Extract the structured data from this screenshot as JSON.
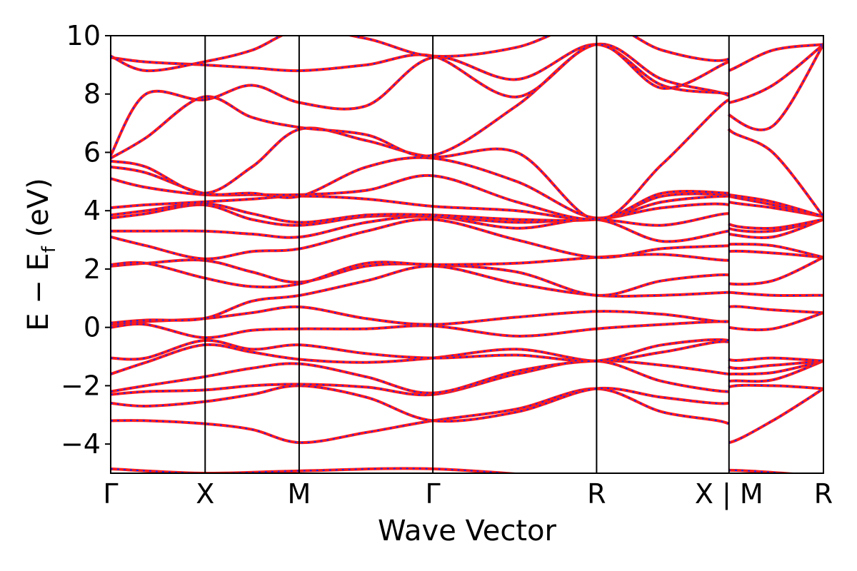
{
  "chart_data": {
    "type": "line",
    "xlabel": "Wave Vector",
    "ylabel_main": "E − E",
    "ylabel_sub": "f",
    "ylabel_unit": " (eV)",
    "ylim": [
      -5,
      10
    ],
    "y_ticks": [
      -4,
      -2,
      0,
      2,
      4,
      6,
      8,
      10
    ],
    "y_tick_labels": [
      "−4",
      "−2",
      "0",
      "2",
      "4",
      "6",
      "8",
      "10"
    ],
    "kpoint_labels": [
      "Γ",
      "X",
      "M",
      "Γ",
      "R",
      "X | M",
      "R"
    ],
    "kpoint_positions": [
      0,
      0.214,
      0.427,
      0.73,
      1.101,
      1.401,
      1.615
    ],
    "vertical_line_positions": [
      0.214,
      0.427,
      0.73,
      1.101,
      1.401,
      1.615
    ],
    "grid": false,
    "series_colors": {
      "reference": "#ff1a1a",
      "overlay": "#2222ee"
    },
    "bands": [
      {
        "name": "",
        "x": [
          0,
          0.21,
          0.43,
          0.73,
          1.1,
          1.4,
          1.4,
          1.615
        ],
        "y": [
          -4.85,
          -5.0,
          -4.92,
          -4.85,
          -5.2,
          -5.2,
          -4.9,
          -5.1
        ]
      },
      {
        "name": "",
        "x": [
          0,
          0.08,
          0.21,
          0.32,
          0.43,
          0.58,
          0.73,
          0.92,
          1.1,
          1.25,
          1.4,
          1.4,
          1.5,
          1.615
        ],
        "y": [
          -3.2,
          -3.2,
          -3.3,
          -3.5,
          -3.95,
          -3.6,
          -3.2,
          -2.8,
          -2.1,
          -2.9,
          -3.3,
          -3.95,
          -3.2,
          -2.1
        ]
      },
      {
        "name": "",
        "x": [
          0,
          0.08,
          0.21,
          0.32,
          0.43,
          0.58,
          0.73,
          0.92,
          1.1,
          1.25,
          1.4,
          1.4,
          1.5,
          1.615
        ],
        "y": [
          -2.6,
          -2.7,
          -2.55,
          -2.3,
          -2.0,
          -2.4,
          -3.2,
          -2.9,
          -2.1,
          -2.4,
          -2.6,
          -2.05,
          -2.0,
          -2.1
        ]
      },
      {
        "name": "",
        "x": [
          0,
          0.08,
          0.21,
          0.32,
          0.43,
          0.58,
          0.73,
          0.92,
          1.1,
          1.25,
          1.4,
          1.4,
          1.5,
          1.615
        ],
        "y": [
          -2.3,
          -2.2,
          -2.15,
          -2.0,
          -1.95,
          -2.05,
          -2.3,
          -1.6,
          -1.15,
          -1.85,
          -2.2,
          -1.85,
          -1.8,
          -1.15
        ]
      },
      {
        "name": "",
        "x": [
          0,
          0.08,
          0.21,
          0.32,
          0.43,
          0.58,
          0.73,
          0.92,
          1.1,
          1.25,
          1.4,
          1.4,
          1.5,
          1.615
        ],
        "y": [
          -2.2,
          -2.0,
          -1.7,
          -1.4,
          -1.25,
          -1.7,
          -2.25,
          -1.5,
          -1.15,
          -1.3,
          -1.6,
          -1.6,
          -1.55,
          -1.15
        ]
      },
      {
        "name": "",
        "x": [
          0,
          0.08,
          0.21,
          0.32,
          0.43,
          0.58,
          0.73,
          0.92,
          1.1,
          1.25,
          1.4,
          1.4,
          1.5,
          1.615
        ],
        "y": [
          -1.6,
          -1.2,
          -0.6,
          -0.85,
          -1.1,
          -1.2,
          -1.05,
          -0.75,
          -1.15,
          -0.85,
          -0.5,
          -1.35,
          -1.3,
          -1.15
        ]
      },
      {
        "name": "",
        "x": [
          0,
          0.08,
          0.21,
          0.32,
          0.43,
          0.58,
          0.73,
          0.92,
          1.1,
          1.25,
          1.4,
          1.4,
          1.5,
          1.615
        ],
        "y": [
          -1.05,
          -1.05,
          -0.45,
          -0.75,
          -0.6,
          -0.9,
          -1.05,
          -0.95,
          -1.15,
          -0.6,
          -0.45,
          -1.1,
          -1.05,
          -1.15
        ]
      },
      {
        "name": "",
        "x": [
          0,
          0.08,
          0.21,
          0.32,
          0.43,
          0.58,
          0.73,
          0.92,
          1.1,
          1.25,
          1.4,
          1.4,
          1.5,
          1.615
        ],
        "y": [
          0.0,
          0.1,
          -0.35,
          -0.1,
          -0.05,
          -0.05,
          0.05,
          -0.3,
          -0.05,
          0.1,
          0.2,
          0.0,
          -0.05,
          0.5
        ]
      },
      {
        "name": "",
        "x": [
          0,
          0.08,
          0.21,
          0.32,
          0.43,
          0.58,
          0.73,
          0.92,
          1.1,
          1.25,
          1.4,
          1.4,
          1.5,
          1.615
        ],
        "y": [
          0.1,
          0.2,
          0.3,
          0.5,
          0.7,
          0.3,
          0.1,
          0.35,
          0.55,
          0.45,
          0.2,
          0.7,
          0.6,
          0.5
        ]
      },
      {
        "name": "",
        "x": [
          0,
          0.08,
          0.21,
          0.32,
          0.43,
          0.58,
          0.73,
          0.92,
          1.1,
          1.25,
          1.4,
          1.4,
          1.5,
          1.615
        ],
        "y": [
          0.15,
          0.25,
          0.3,
          0.9,
          1.1,
          1.6,
          2.1,
          1.5,
          1.1,
          1.1,
          1.2,
          1.2,
          1.1,
          1.1
        ]
      },
      {
        "name": "",
        "x": [
          0,
          0.08,
          0.21,
          0.32,
          0.43,
          0.58,
          0.73,
          0.92,
          1.1,
          1.25,
          1.4,
          1.4,
          1.5,
          1.615
        ],
        "y": [
          2.1,
          2.2,
          2.3,
          1.9,
          1.55,
          2.1,
          2.15,
          1.9,
          1.1,
          1.6,
          1.8,
          1.5,
          1.6,
          2.4
        ]
      },
      {
        "name": "",
        "x": [
          0,
          0.08,
          0.21,
          0.32,
          0.43,
          0.58,
          0.73,
          0.92,
          1.1,
          1.25,
          1.4,
          1.4,
          1.5,
          1.615
        ],
        "y": [
          2.15,
          2.2,
          1.7,
          1.4,
          1.5,
          2.2,
          2.15,
          2.2,
          2.4,
          2.5,
          2.3,
          2.6,
          2.55,
          2.4
        ]
      },
      {
        "name": "",
        "x": [
          0,
          0.08,
          0.21,
          0.32,
          0.43,
          0.58,
          0.73,
          0.92,
          1.1,
          1.25,
          1.4,
          1.4,
          1.5,
          1.615
        ],
        "y": [
          3.1,
          2.8,
          2.35,
          2.6,
          2.7,
          3.3,
          3.7,
          3.0,
          2.4,
          2.7,
          2.8,
          2.85,
          2.8,
          2.4
        ]
      },
      {
        "name": "",
        "x": [
          0,
          0.08,
          0.21,
          0.32,
          0.43,
          0.58,
          0.73,
          0.92,
          1.1,
          1.25,
          1.4,
          1.4,
          1.5,
          1.615
        ],
        "y": [
          3.3,
          3.3,
          3.3,
          3.2,
          3.1,
          3.6,
          3.8,
          3.4,
          3.7,
          2.95,
          3.3,
          3.2,
          3.1,
          3.7
        ]
      },
      {
        "name": "",
        "x": [
          0,
          0.08,
          0.21,
          0.32,
          0.43,
          0.58,
          0.73,
          0.92,
          1.1,
          1.25,
          1.4,
          1.4,
          1.5,
          1.615
        ],
        "y": [
          3.75,
          3.9,
          4.2,
          3.7,
          3.5,
          3.8,
          3.8,
          3.6,
          3.7,
          3.5,
          3.9,
          3.4,
          3.3,
          3.7
        ]
      },
      {
        "name": "",
        "x": [
          0,
          0.08,
          0.21,
          0.32,
          0.43,
          0.58,
          0.73,
          0.92,
          1.1,
          1.25,
          1.4,
          1.4,
          1.5,
          1.615
        ],
        "y": [
          3.85,
          4.0,
          4.25,
          3.9,
          3.6,
          3.85,
          3.85,
          3.7,
          3.7,
          4.1,
          4.2,
          3.55,
          3.4,
          3.7
        ]
      },
      {
        "name": "",
        "x": [
          0,
          0.08,
          0.21,
          0.32,
          0.43,
          0.58,
          0.73,
          0.92,
          1.1,
          1.25,
          1.4,
          1.4,
          1.5,
          1.615
        ],
        "y": [
          4.1,
          4.2,
          4.3,
          4.4,
          4.5,
          4.4,
          4.15,
          4.0,
          3.7,
          4.3,
          4.5,
          4.3,
          4.1,
          3.8
        ]
      },
      {
        "name": "",
        "x": [
          0,
          0.08,
          0.21,
          0.32,
          0.43,
          0.58,
          0.73,
          0.92,
          1.1,
          1.25,
          1.4,
          1.4,
          1.5,
          1.615
        ],
        "y": [
          5.1,
          4.8,
          4.55,
          4.55,
          4.55,
          4.7,
          5.2,
          4.3,
          3.7,
          4.5,
          4.55,
          4.5,
          4.2,
          3.8
        ]
      },
      {
        "name": "",
        "x": [
          0,
          0.08,
          0.21,
          0.32,
          0.43,
          0.58,
          0.73,
          0.92,
          1.1,
          1.25,
          1.4,
          1.4,
          1.5,
          1.615
        ],
        "y": [
          5.5,
          5.3,
          4.6,
          4.6,
          4.5,
          5.5,
          5.8,
          5.0,
          3.75,
          4.6,
          4.6,
          4.55,
          4.3,
          3.8
        ]
      },
      {
        "name": "",
        "x": [
          0,
          0.08,
          0.21,
          0.32,
          0.43,
          0.58,
          0.73,
          0.92,
          1.1,
          1.25,
          1.4,
          1.4,
          1.5,
          1.615
        ],
        "y": [
          5.7,
          5.5,
          4.6,
          5.5,
          6.8,
          6.4,
          5.85,
          6.0,
          3.7,
          5.6,
          7.8,
          6.8,
          6.0,
          3.8
        ]
      },
      {
        "name": "",
        "x": [
          0,
          0.08,
          0.21,
          0.32,
          0.43,
          0.58,
          0.73,
          0.92,
          1.1,
          1.25,
          1.4,
          1.4,
          1.5,
          1.615
        ],
        "y": [
          5.8,
          6.5,
          7.9,
          7.2,
          6.85,
          6.6,
          5.9,
          7.6,
          9.7,
          8.5,
          7.95,
          7.3,
          6.9,
          9.7
        ]
      },
      {
        "name": "",
        "x": [
          0,
          0.08,
          0.21,
          0.32,
          0.43,
          0.58,
          0.73,
          0.92,
          1.1,
          1.25,
          1.4,
          1.4,
          1.5,
          1.615
        ],
        "y": [
          5.9,
          8.0,
          7.8,
          8.3,
          7.7,
          7.6,
          9.25,
          8.5,
          9.7,
          8.3,
          8.0,
          7.7,
          8.3,
          9.7
        ]
      },
      {
        "name": "",
        "x": [
          0,
          0.08,
          0.21,
          0.32,
          0.43,
          0.58,
          0.73,
          0.92,
          1.1,
          1.25,
          1.4,
          1.4,
          1.5,
          1.615
        ],
        "y": [
          9.25,
          9.1,
          9.0,
          8.9,
          8.8,
          9.0,
          9.3,
          7.9,
          9.7,
          8.2,
          9.1,
          8.8,
          9.5,
          9.7
        ]
      },
      {
        "name": "",
        "x": [
          0,
          0.08,
          0.21,
          0.32,
          0.43,
          0.58,
          0.73,
          0.92,
          1.1,
          1.25,
          1.4,
          1.4,
          1.5,
          1.615
        ],
        "y": [
          9.3,
          8.8,
          9.1,
          9.5,
          10.2,
          9.9,
          9.3,
          9.6,
          10.5,
          9.5,
          9.2,
          10.5,
          10.5,
          10.5
        ]
      }
    ]
  }
}
